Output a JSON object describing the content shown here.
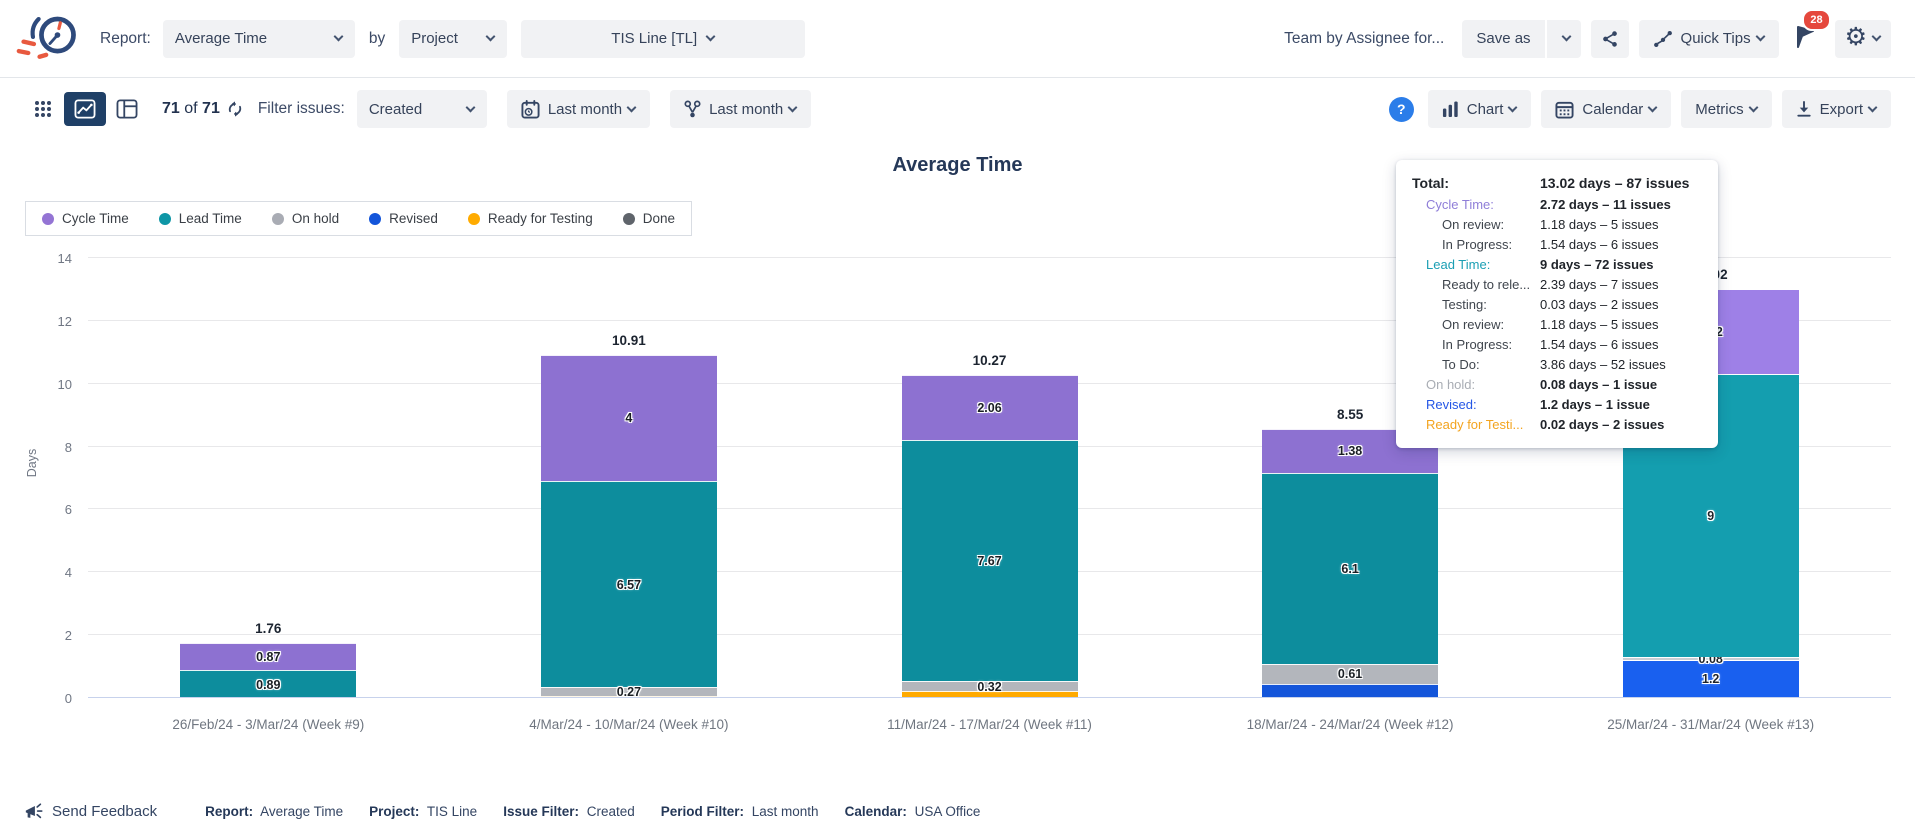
{
  "header": {
    "report_label": "Report:",
    "report_value": "Average Time",
    "by_label": "by",
    "group_value": "Project",
    "project_value": "TIS Line [TL]",
    "doc_title": "Team by Assignee for...",
    "save_as_label": "Save as",
    "quick_tips_label": "Quick Tips",
    "badge_count": "28"
  },
  "toolbar": {
    "count_current": "71",
    "count_sep": "of",
    "count_total": "71",
    "filter_issues_label": "Filter issues:",
    "issue_filter_value": "Created",
    "period_filter_value": "Last month",
    "sprint_filter_value": "Last month",
    "help_label": "?",
    "chart_label": "Chart",
    "calendar_label": "Calendar",
    "metrics_label": "Metrics",
    "export_label": "Export"
  },
  "chart": {
    "title": "Average Time",
    "legend": [
      {
        "label": "Cycle Time",
        "color": "#9474d4",
        "bold": true
      },
      {
        "label": "Lead Time",
        "color": "#0e96a6",
        "bold": true
      },
      {
        "label": "On hold",
        "color": "#a9acb4"
      },
      {
        "label": "Revised",
        "color": "#1355da"
      },
      {
        "label": "Ready for Testing",
        "color": "#ffab00"
      },
      {
        "label": "Done",
        "color": "#5f646b",
        "disabled": true
      }
    ]
  },
  "chart_data": {
    "type": "bar",
    "stacked": true,
    "title": "Average Time",
    "xlabel": "",
    "ylabel": "Days",
    "ylim": [
      0,
      14
    ],
    "yticks": [
      0,
      2,
      4,
      6,
      8,
      10,
      12,
      14
    ],
    "grid": true,
    "legend_position": "top-left",
    "hovered_bar_index": 4,
    "categories": [
      "26/Feb/24 - 3/Mar/24 (Week #9)",
      "4/Mar/24 - 10/Mar/24 (Week #10)",
      "11/Mar/24 - 17/Mar/24 (Week #11)",
      "18/Mar/24 - 24/Mar/24 (Week #12)",
      "25/Mar/24 - 31/Mar/24 (Week #13)"
    ],
    "series": [
      {
        "name": "Cycle Time",
        "color": "#8d71d1",
        "values": [
          0.87,
          4,
          2.06,
          1.38,
          2.72
        ],
        "labels": [
          "0.87",
          "4",
          "2.06",
          "1.38",
          "2.72"
        ]
      },
      {
        "name": "Lead Time",
        "color": "#0d8d9d",
        "values": [
          0.89,
          6.57,
          7.67,
          6.1,
          9
        ],
        "labels": [
          "0.89",
          "6.57",
          "7.67",
          "6.1",
          "9"
        ]
      },
      {
        "name": "On hold",
        "color": "#b3b6bc",
        "values": [
          0,
          0.27,
          0.32,
          0.61,
          0.08
        ],
        "labels": [
          "",
          "0.27",
          "0.32",
          "0.61",
          "0.08"
        ]
      },
      {
        "name": "Revised",
        "color": "#1355da",
        "values": [
          0,
          0,
          0,
          0.46,
          1.2
        ],
        "labels": [
          "",
          "",
          "",
          "",
          "1.2"
        ]
      },
      {
        "name": "Ready for Testing",
        "color": "#ffaa00",
        "values": [
          0,
          0.07,
          0.22,
          0,
          0.02
        ],
        "labels": [
          "",
          "",
          "",
          "",
          ""
        ]
      },
      {
        "name": "Done",
        "color": "#5f646b",
        "disabled": true,
        "values": [
          0,
          0,
          0,
          0,
          0
        ],
        "labels": [
          "",
          "",
          "",
          "",
          ""
        ]
      }
    ],
    "totals": [
      "1.76",
      "10.91",
      "10.27",
      "8.55",
      "13.02"
    ]
  },
  "tooltip": {
    "rows": [
      {
        "label": "Total:",
        "value": "13.02 days – 87 issues",
        "level": 0,
        "strong": true
      },
      {
        "label": "Cycle Time:",
        "value": "2.72 days – 11 issues",
        "level": 1,
        "color": "#8f7ed8",
        "strong": true
      },
      {
        "label": "On review:",
        "value": "1.18 days – 5 issues",
        "level": 2
      },
      {
        "label": "In Progress:",
        "value": "1.54 days – 6 issues",
        "level": 2
      },
      {
        "label": "Lead Time:",
        "value": "9 days – 72 issues",
        "level": 1,
        "color": "#1b9fb4",
        "strong": true
      },
      {
        "label": "Ready to rele...",
        "value": "2.39 days – 7 issues",
        "level": 2
      },
      {
        "label": "Testing:",
        "value": "0.03 days – 2 issues",
        "level": 2
      },
      {
        "label": "On review:",
        "value": "1.18 days – 5 issues",
        "level": 2
      },
      {
        "label": "In Progress:",
        "value": "1.54 days – 6 issues",
        "level": 2
      },
      {
        "label": "To Do:",
        "value": "3.86 days – 52 issues",
        "level": 2
      },
      {
        "label": "On hold:",
        "value": "0.08 days – 1 issue",
        "level": 1,
        "color": "#a9adb4",
        "strong": true
      },
      {
        "label": "Revised:",
        "value": "1.2 days – 1 issue",
        "level": 1,
        "color": "#2456e6",
        "strong": true
      },
      {
        "label": "Ready for Testi...",
        "value": "0.02 days – 2 issues",
        "level": 1,
        "color": "#f3a41f",
        "strong": true
      }
    ]
  },
  "footer": {
    "feedback_label": "Send Feedback",
    "summary": [
      {
        "label": "Report:",
        "value": "Average Time"
      },
      {
        "label": "Project:",
        "value": "TIS Line"
      },
      {
        "label": "Issue Filter:",
        "value": "Created"
      },
      {
        "label": "Period Filter:",
        "value": "Last month"
      },
      {
        "label": "Calendar:",
        "value": "USA Office"
      }
    ]
  }
}
